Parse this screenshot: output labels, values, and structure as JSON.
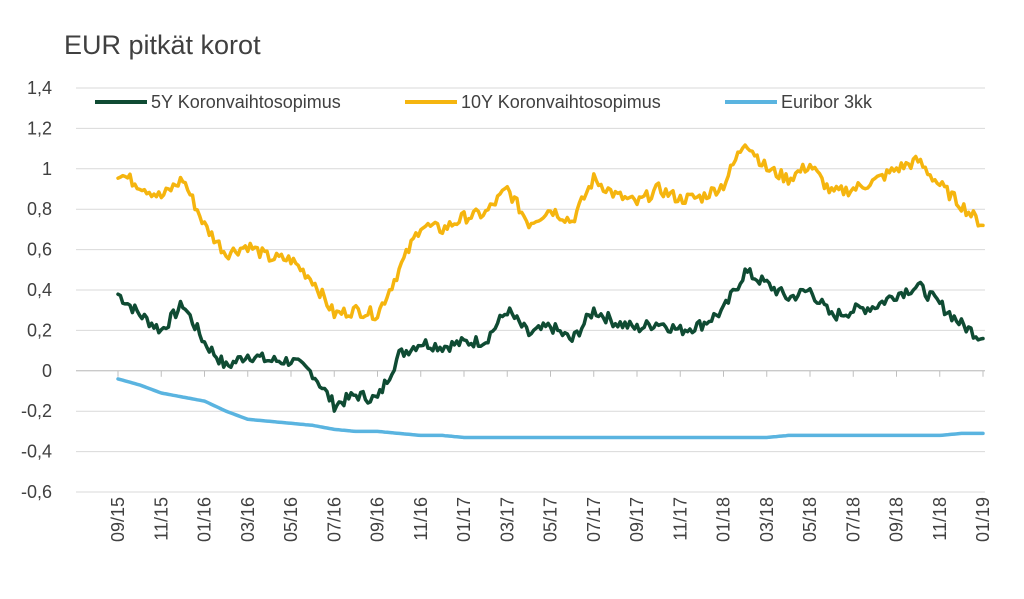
{
  "title": "EUR pitkät korot",
  "chart_data": {
    "type": "line",
    "title": "EUR pitkät korot",
    "xlabel": "",
    "ylabel": "",
    "ylim": [
      -0.6,
      1.4
    ],
    "y_ticks": [
      "1,4",
      "1,2",
      "1",
      "0,8",
      "0,6",
      "0,4",
      "0,2",
      "0",
      "-0,2",
      "-0,4",
      "-0,6"
    ],
    "y_tick_values": [
      1.4,
      1.2,
      1.0,
      0.8,
      0.6,
      0.4,
      0.2,
      0.0,
      -0.2,
      -0.4,
      -0.6
    ],
    "x_ticks": [
      "09/15",
      "11/15",
      "01/16",
      "03/16",
      "05/16",
      "07/16",
      "09/16",
      "11/16",
      "01/17",
      "03/17",
      "05/17",
      "07/17",
      "09/17",
      "11/17",
      "01/18",
      "03/18",
      "05/18",
      "07/18",
      "09/18",
      "11/18",
      "01/19"
    ],
    "grid": "horizontal",
    "legend_position": "top",
    "series": [
      {
        "name": "5Y Koronvaihtosopimus",
        "color": "#0f4b33",
        "x": [
          "09/15",
          "10/15",
          "11/15",
          "12/15",
          "01/16",
          "02/16",
          "03/16",
          "04/16",
          "05/16",
          "06/16",
          "07/16",
          "08/16",
          "09/16",
          "10/16",
          "11/16",
          "12/16",
          "01/17",
          "02/17",
          "03/17",
          "04/17",
          "05/17",
          "06/17",
          "07/17",
          "08/17",
          "09/17",
          "10/17",
          "11/17",
          "12/17",
          "01/18",
          "02/18",
          "03/18",
          "04/18",
          "05/18",
          "06/18",
          "07/18",
          "08/18",
          "09/18",
          "10/18",
          "11/18",
          "12/18",
          "01/19"
        ],
        "values": [
          0.38,
          0.28,
          0.2,
          0.33,
          0.14,
          0.02,
          0.08,
          0.05,
          0.05,
          -0.01,
          -0.17,
          -0.12,
          -0.14,
          0.08,
          0.14,
          0.12,
          0.14,
          0.15,
          0.3,
          0.18,
          0.22,
          0.15,
          0.3,
          0.24,
          0.21,
          0.24,
          0.2,
          0.23,
          0.3,
          0.49,
          0.43,
          0.36,
          0.4,
          0.27,
          0.3,
          0.32,
          0.38,
          0.42,
          0.33,
          0.23,
          0.16
        ]
      },
      {
        "name": "10Y Koronvaihtosopimus",
        "color": "#f5b50f",
        "x": [
          "09/15",
          "10/15",
          "11/15",
          "12/15",
          "01/16",
          "02/16",
          "03/16",
          "04/16",
          "05/16",
          "06/16",
          "07/16",
          "08/16",
          "09/16",
          "10/16",
          "11/16",
          "12/16",
          "01/17",
          "02/17",
          "03/17",
          "04/17",
          "05/17",
          "06/17",
          "07/17",
          "08/17",
          "09/17",
          "10/17",
          "11/17",
          "12/17",
          "01/18",
          "02/18",
          "03/18",
          "04/18",
          "05/18",
          "06/18",
          "07/18",
          "08/18",
          "09/18",
          "10/18",
          "11/18",
          "12/18",
          "01/19"
        ],
        "values": [
          0.98,
          0.92,
          0.86,
          0.95,
          0.72,
          0.58,
          0.62,
          0.56,
          0.55,
          0.45,
          0.28,
          0.3,
          0.28,
          0.5,
          0.72,
          0.7,
          0.76,
          0.78,
          0.9,
          0.73,
          0.8,
          0.74,
          0.95,
          0.87,
          0.83,
          0.9,
          0.85,
          0.86,
          0.92,
          1.14,
          1.0,
          0.95,
          1.02,
          0.88,
          0.9,
          0.94,
          1.0,
          1.04,
          0.92,
          0.82,
          0.72
        ]
      },
      {
        "name": "Euribor 3kk",
        "color": "#5ab4e0",
        "x": [
          "09/15",
          "10/15",
          "11/15",
          "12/15",
          "01/16",
          "02/16",
          "03/16",
          "04/16",
          "05/16",
          "06/16",
          "07/16",
          "08/16",
          "09/16",
          "10/16",
          "11/16",
          "12/16",
          "01/17",
          "02/17",
          "03/17",
          "04/17",
          "05/17",
          "06/17",
          "07/17",
          "08/17",
          "09/17",
          "10/17",
          "11/17",
          "12/17",
          "01/18",
          "02/18",
          "03/18",
          "04/18",
          "05/18",
          "06/18",
          "07/18",
          "08/18",
          "09/18",
          "10/18",
          "11/18",
          "12/18",
          "01/19"
        ],
        "values": [
          -0.04,
          -0.07,
          -0.11,
          -0.13,
          -0.15,
          -0.2,
          -0.24,
          -0.25,
          -0.26,
          -0.27,
          -0.29,
          -0.3,
          -0.3,
          -0.31,
          -0.32,
          -0.32,
          -0.33,
          -0.33,
          -0.33,
          -0.33,
          -0.33,
          -0.33,
          -0.33,
          -0.33,
          -0.33,
          -0.33,
          -0.33,
          -0.33,
          -0.33,
          -0.33,
          -0.33,
          -0.32,
          -0.32,
          -0.32,
          -0.32,
          -0.32,
          -0.32,
          -0.32,
          -0.32,
          -0.31,
          -0.31
        ]
      }
    ]
  }
}
